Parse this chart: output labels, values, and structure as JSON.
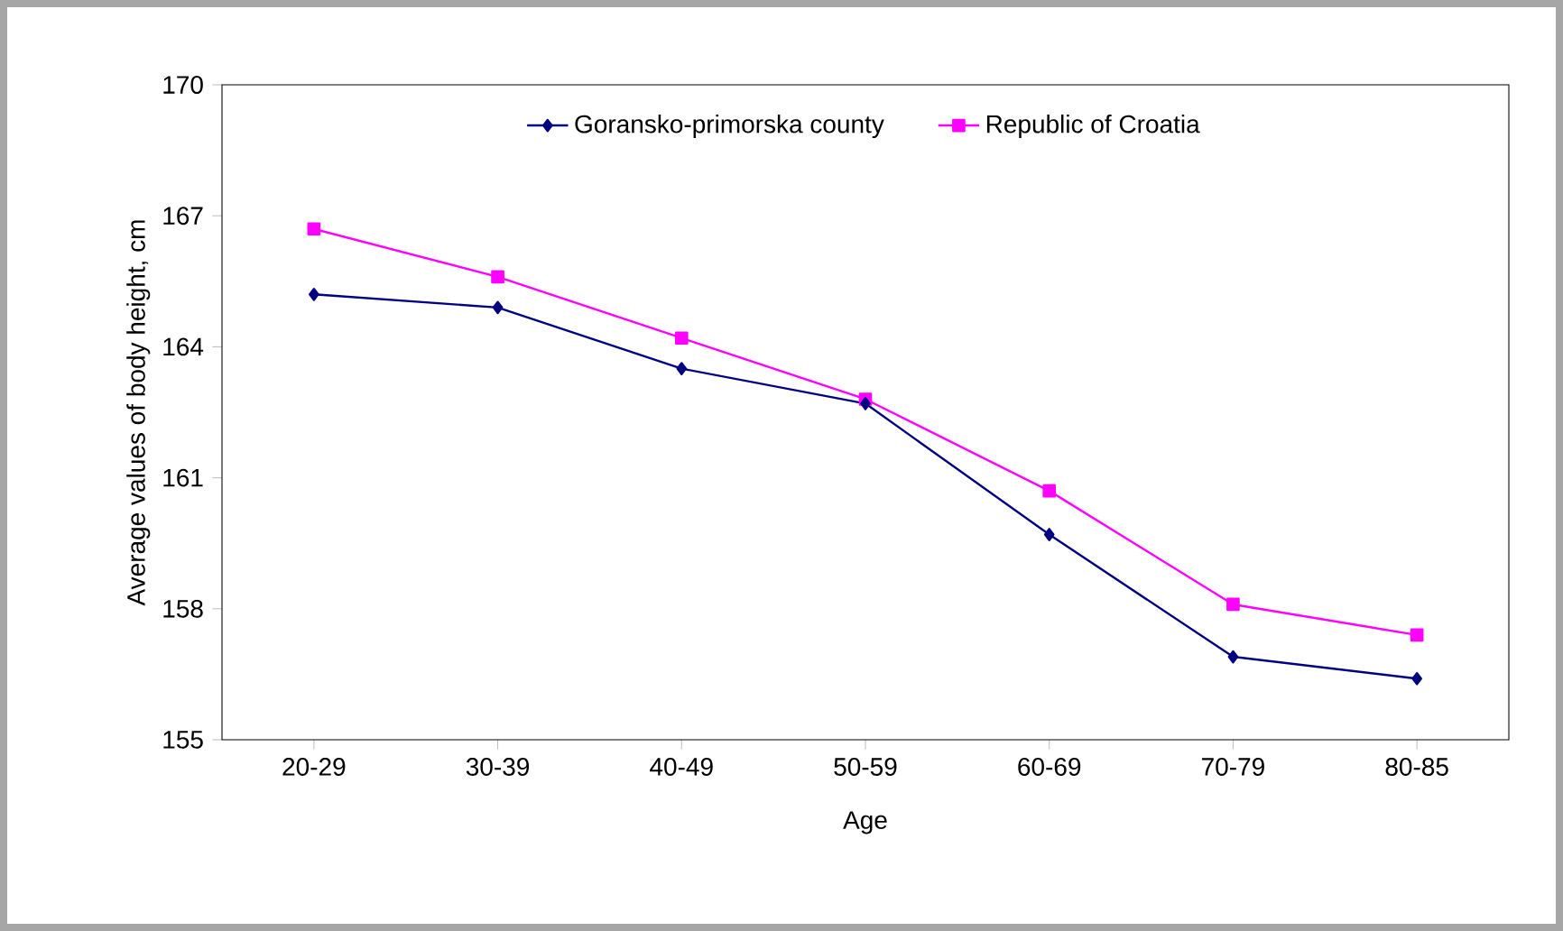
{
  "chart_data": {
    "type": "line",
    "xlabel": "Age",
    "ylabel": "Average values of body height, cm",
    "categories": [
      "20-29",
      "30-39",
      "40-49",
      "50-59",
      "60-69",
      "70-79",
      "80-85"
    ],
    "series": [
      {
        "name": "Goransko-primorska county",
        "color": "#000080",
        "marker": "diamond",
        "values": [
          165.2,
          164.9,
          163.5,
          162.7,
          159.7,
          156.9,
          156.4
        ]
      },
      {
        "name": "Republic of Croatia",
        "color": "#ff00ff",
        "marker": "square",
        "values": [
          166.7,
          165.6,
          164.2,
          162.8,
          160.7,
          158.1,
          157.4
        ]
      }
    ],
    "ylim": [
      155,
      170
    ],
    "yticks": [
      155,
      158,
      161,
      164,
      167,
      170
    ],
    "legend": "top"
  }
}
